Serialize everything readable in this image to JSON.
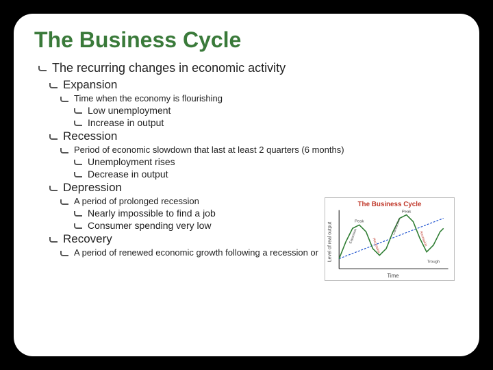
{
  "title": "The Business Cycle",
  "intro": "The recurring changes in economic activity",
  "sections": {
    "expansion": {
      "label": "Expansion",
      "desc": "Time when the economy is flourishing",
      "sub": [
        "Low unemployment",
        "Increase in output"
      ]
    },
    "recession": {
      "label": "Recession",
      "desc": "Period of economic slowdown that last at least 2 quarters (6 months)",
      "sub": [
        "Unemployment rises",
        "Decrease in output"
      ]
    },
    "depression": {
      "label": "Depression",
      "desc": "A period of prolonged recession",
      "sub": [
        "Nearly impossible to find a job",
        "Consumer spending very low"
      ]
    },
    "recovery": {
      "label": "Recovery",
      "desc": "A period of renewed economic growth following a recession or"
    }
  },
  "chart": {
    "title": "The Business Cycle",
    "title_color": "#c0392b",
    "ylabel": "Level of real output",
    "xlabel": "Time",
    "axis_color": "#333333",
    "curve_color": "#2e7d32",
    "trend_color": "#1a4fcf",
    "label_color": "#444444",
    "background": "#ffffff",
    "curve": [
      [
        20,
        90
      ],
      [
        30,
        65
      ],
      [
        40,
        45
      ],
      [
        50,
        40
      ],
      [
        60,
        50
      ],
      [
        70,
        75
      ],
      [
        80,
        85
      ],
      [
        90,
        75
      ],
      [
        100,
        50
      ],
      [
        110,
        30
      ],
      [
        120,
        25
      ],
      [
        130,
        35
      ],
      [
        140,
        60
      ],
      [
        150,
        80
      ],
      [
        160,
        70
      ],
      [
        170,
        50
      ],
      [
        175,
        45
      ]
    ],
    "trend": [
      [
        20,
        90
      ],
      [
        175,
        30
      ]
    ],
    "peak_labels": [
      "Peak",
      "Peak"
    ],
    "trough_label": "Trough",
    "phase_labels": [
      "Expansion",
      "Recession",
      "Contraction",
      "Recession"
    ]
  },
  "colors": {
    "title": "#3a7a3a",
    "text": "#222222",
    "slide_bg": "#ffffff",
    "page_bg": "#000000"
  }
}
